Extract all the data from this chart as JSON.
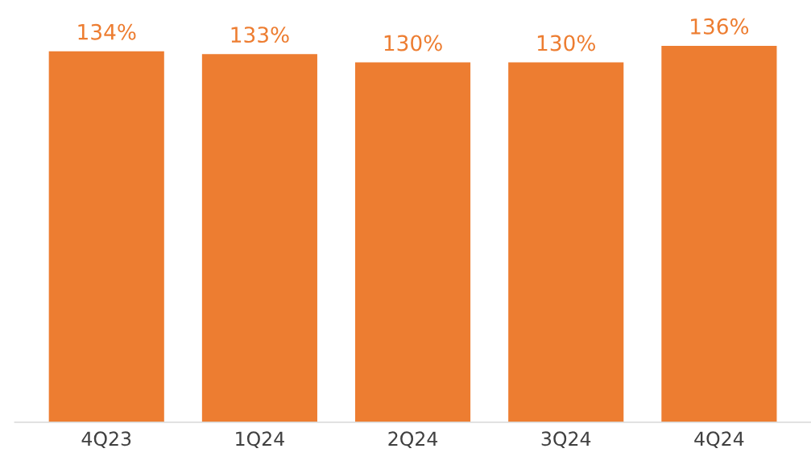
{
  "chart_data": {
    "type": "bar",
    "categories": [
      "4Q23",
      "1Q24",
      "2Q24",
      "3Q24",
      "4Q24"
    ],
    "values": [
      134,
      133,
      130,
      130,
      136
    ],
    "value_labels": [
      "134%",
      "133%",
      "130%",
      "130%",
      "136%"
    ],
    "color": "#ed7d31",
    "tick_labels": "x",
    "grid": false,
    "legend": false
  }
}
